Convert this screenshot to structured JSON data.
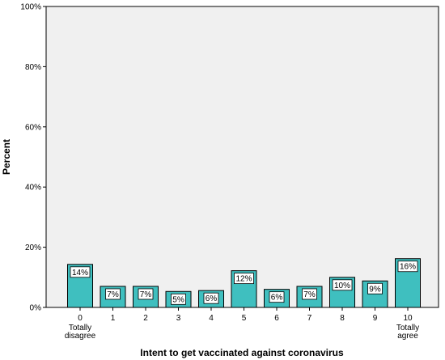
{
  "chart_data": {
    "type": "bar",
    "categories": [
      "0",
      "1",
      "2",
      "3",
      "4",
      "5",
      "6",
      "7",
      "8",
      "9",
      "10"
    ],
    "category_sublabels": [
      "Totally disagree",
      "",
      "",
      "",
      "",
      "",
      "",
      "",
      "",
      "",
      "Totally agree"
    ],
    "values": [
      14.3,
      7.0,
      7.0,
      5.3,
      5.6,
      12.2,
      6.0,
      7.0,
      10.0,
      8.8,
      16.2
    ],
    "data_labels": [
      "14%",
      "7%",
      "7%",
      "5%",
      "6%",
      "12%",
      "6%",
      "7%",
      "10%",
      "9%",
      "16%"
    ],
    "xlabel": "Intent to get vaccinated against coronavirus",
    "ylabel": "Percent",
    "ylim": [
      0,
      100
    ],
    "yticks": [
      0,
      20,
      40,
      60,
      80,
      100
    ],
    "ytick_labels": [
      "0%",
      "20%",
      "40%",
      "60%",
      "80%",
      "100%"
    ],
    "grid": false,
    "colors": {
      "bar_fill": "#3fbfbf",
      "bar_stroke": "#000000",
      "plot_background": "#f0f0f0",
      "label_box": "#ffffff"
    }
  }
}
